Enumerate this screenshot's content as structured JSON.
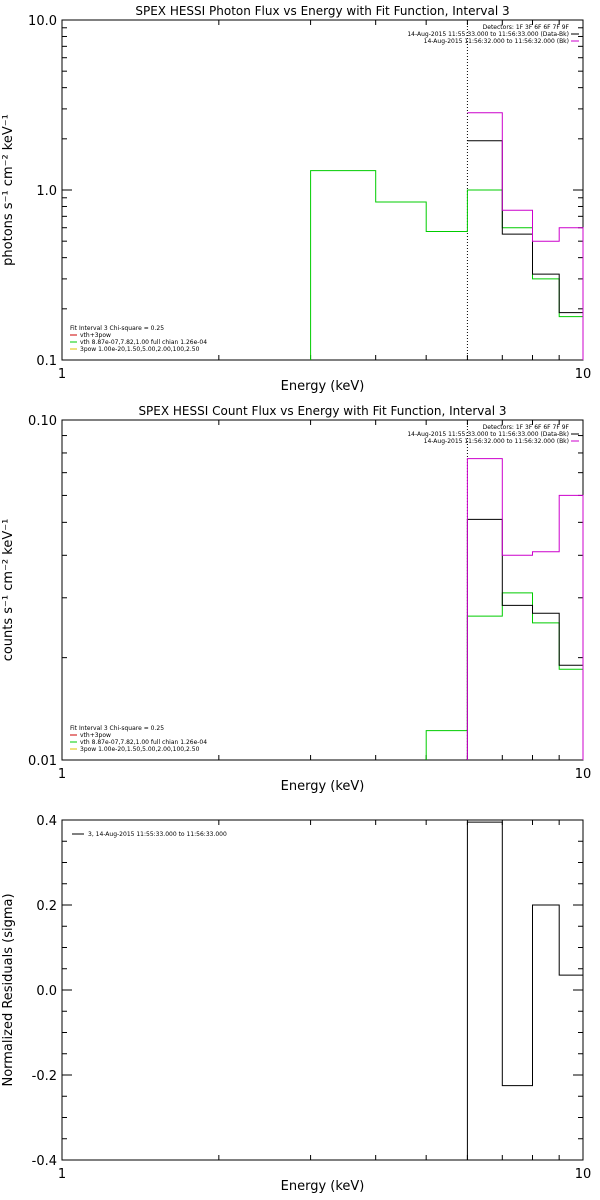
{
  "chart_data": [
    {
      "type": "line",
      "title": "SPEX HESSI Photon Flux vs Energy with Fit Function, Interval 3",
      "xlabel": "Energy (keV)",
      "ylabel": "photons s⁻¹ cm⁻² keV⁻¹",
      "xscale": "log",
      "yscale": "log",
      "xlim": [
        1,
        10
      ],
      "ylim": [
        0.1,
        10
      ],
      "xticks": [
        {
          "v": 1,
          "label": "1"
        },
        {
          "v": 10,
          "label": "10"
        }
      ],
      "yticks": [
        {
          "v": 0.1,
          "label": "0.1"
        },
        {
          "v": 1,
          "label": "1.0"
        },
        {
          "v": 10,
          "label": "10.0"
        }
      ],
      "vline": 6.0,
      "legend_top": [
        "Detectors: 1F 3F 6F 6F 7F 9F",
        "14-Aug-2015 11:55:33.000 to 11:56:33.000 (Data-Bk)",
        "14-Aug-2015 11:56:32.000 to 11:56:32.000 (Bk)"
      ],
      "legend_top_colors": [
        "none",
        "#000000",
        "#cc00cc"
      ],
      "legend_bottom": [
        "Fit Interval 3   Chi-square = 0.25",
        "vth+3pow",
        "vth 8.87e-07,7.82,1.00  full chian 1.26e-04",
        "3pow 1.00e-20,1.50,5.00,2.00,100,2.50"
      ],
      "legend_bottom_colors": [
        "none",
        "#cc0000",
        "#00cc00",
        "#e0c000"
      ],
      "series": [
        {
          "color": "#00cc00",
          "edges": [
            3,
            4,
            5,
            6,
            7,
            8,
            9,
            10
          ],
          "values": [
            1.3,
            0.85,
            0.57,
            1.0,
            0.6,
            0.3,
            0.18
          ],
          "drop_start": true
        },
        {
          "color": "#000000",
          "edges": [
            6,
            7,
            8,
            9,
            10
          ],
          "values": [
            1.95,
            0.55,
            0.32,
            0.19
          ],
          "drop_end": true
        },
        {
          "color": "#cc00cc",
          "edges": [
            6,
            7,
            8,
            9,
            10
          ],
          "values": [
            2.85,
            0.76,
            0.5,
            0.6
          ],
          "drop_end": true
        }
      ]
    },
    {
      "type": "line",
      "title": "SPEX HESSI Count Flux vs Energy with Fit Function, Interval 3",
      "xlabel": "Energy (keV)",
      "ylabel": "counts s⁻¹ cm⁻² keV⁻¹",
      "xscale": "log",
      "yscale": "log",
      "xlim": [
        1,
        10
      ],
      "ylim": [
        0.01,
        0.1
      ],
      "xticks": [
        {
          "v": 1,
          "label": "1"
        },
        {
          "v": 10,
          "label": "10"
        }
      ],
      "yticks": [
        {
          "v": 0.01,
          "label": "0.01"
        },
        {
          "v": 0.1,
          "label": "0.10"
        }
      ],
      "vline": 6.0,
      "legend_top": [
        "Detectors: 1F 3F 6F 6F 7F 9F",
        "14-Aug-2015 11:55:33.000 to 11:56:33.000 (Data-Bk)",
        "14-Aug-2015 11:56:32.000 to 11:56:32.000 (Bk)"
      ],
      "legend_top_colors": [
        "none",
        "#000000",
        "#cc00cc"
      ],
      "legend_bottom": [
        "Fit Interval 3   Chi-square = 0.25",
        "vth+3pow",
        "vth 8.87e-07,7.82,1.00  full chian 1.26e-04",
        "3pow 1.00e-20,1.50,5.00,2.00,100,2.50"
      ],
      "legend_bottom_colors": [
        "none",
        "#cc0000",
        "#00cc00",
        "#e0c000"
      ],
      "series": [
        {
          "color": "#00cc00",
          "edges": [
            5,
            6,
            7,
            8,
            9,
            10
          ],
          "values": [
            0.0122,
            0.0265,
            0.031,
            0.0253,
            0.0185
          ],
          "drop_start": true,
          "drop_end": true
        },
        {
          "color": "#000000",
          "edges": [
            6,
            7,
            8,
            9,
            10
          ],
          "values": [
            0.051,
            0.0285,
            0.027,
            0.019
          ],
          "drop_start": true,
          "drop_end": true
        },
        {
          "color": "#cc00cc",
          "edges": [
            6,
            7,
            8,
            9,
            10
          ],
          "values": [
            0.077,
            0.04,
            0.041,
            0.06
          ],
          "drop_start": true,
          "drop_end": true
        }
      ]
    },
    {
      "type": "line",
      "title": "",
      "xlabel": "Energy (keV)",
      "ylabel": "Normalized Residuals (sigma)",
      "xscale": "log",
      "yscale": "linear",
      "xlim": [
        1,
        10
      ],
      "ylim": [
        -0.4,
        0.4
      ],
      "xticks": [
        {
          "v": 1,
          "label": "1"
        },
        {
          "v": 10,
          "label": "10"
        }
      ],
      "yticks": [
        {
          "v": -0.4,
          "label": "-0.4"
        },
        {
          "v": -0.2,
          "label": "-0.2"
        },
        {
          "v": 0,
          "label": "0.0"
        },
        {
          "v": 0.2,
          "label": "0.2"
        },
        {
          "v": 0.4,
          "label": "0.4"
        }
      ],
      "legend": "3, 14-Aug-2015 11:55:33.000 to 11:56:33.000",
      "series": [
        {
          "color": "#000000",
          "edges": [
            6,
            7,
            8,
            9,
            10
          ],
          "values": [
            0.395,
            -0.225,
            0.2,
            0.035
          ],
          "drop_start_to": -0.4
        }
      ]
    }
  ]
}
